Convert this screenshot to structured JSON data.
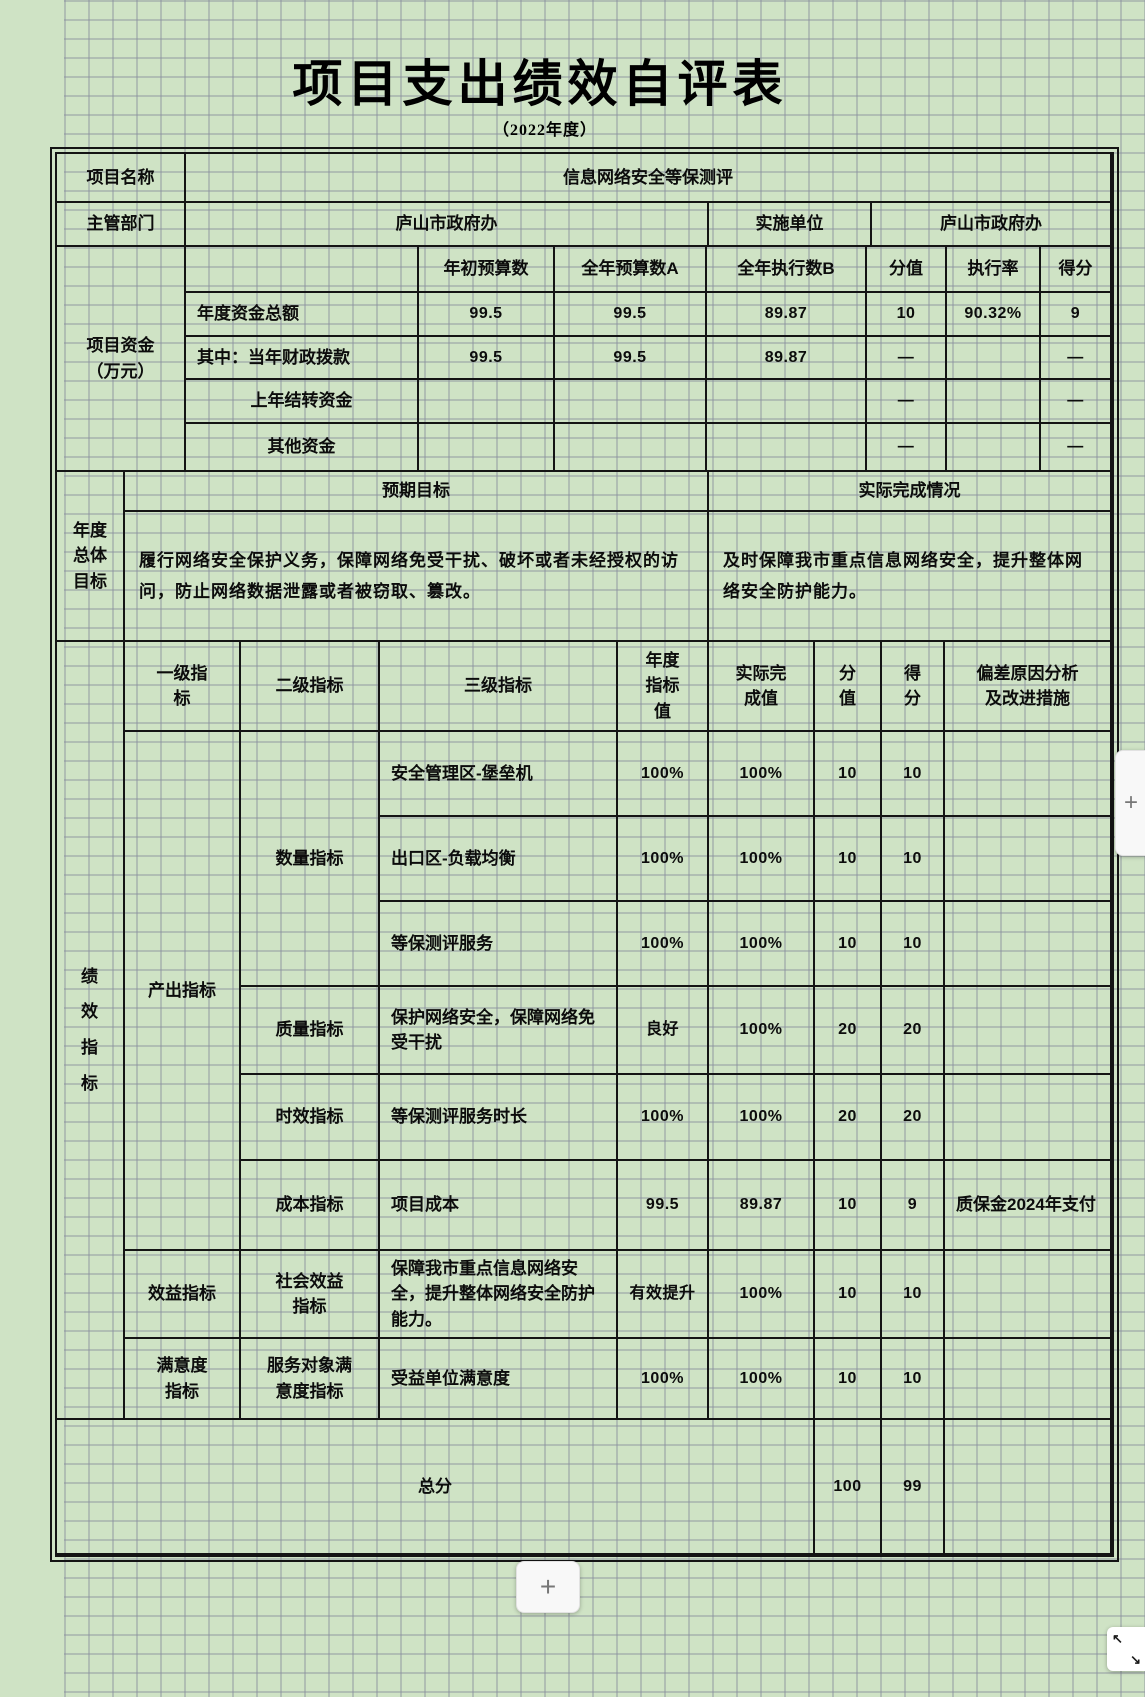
{
  "title": "项目支出绩效自评表",
  "subtitle": "（2022年度）",
  "info": {
    "project_name_label": "项目名称",
    "project_name": "信息网络安全等保测评",
    "dept_label": "主管部门",
    "dept": "庐山市政府办",
    "impl_label": "实施单位",
    "impl": "庐山市政府办"
  },
  "funding": {
    "row_label": "项目资金\n（万元）",
    "col_headers": [
      "年初预算数",
      "全年预算数A",
      "全年执行数B",
      "分值",
      "执行率",
      "得分"
    ],
    "rows": [
      {
        "label": "年度资金总额",
        "initial": "99.5",
        "annual": "99.5",
        "executed": "89.87",
        "points": "10",
        "rate": "90.32%",
        "score": "9"
      },
      {
        "label": "其中：当年财政拨款",
        "initial": "99.5",
        "annual": "99.5",
        "executed": "89.87",
        "points": "—",
        "rate": "",
        "score": "—"
      },
      {
        "label": "上年结转资金",
        "initial": "",
        "annual": "",
        "executed": "",
        "points": "—",
        "rate": "",
        "score": "—"
      },
      {
        "label": "其他资金",
        "initial": "",
        "annual": "",
        "executed": "",
        "points": "—",
        "rate": "",
        "score": "—"
      }
    ]
  },
  "goal": {
    "row_label": "年度\n总体\n目标",
    "expected_header": "预期目标",
    "actual_header": "实际完成情况",
    "expected_text": "履行网络安全保护义务，保障网络免受干扰、破坏或者未经授权的访问，防止网络数据泄露或者被窃取、篡改。",
    "actual_text": "及时保障我市重点信息网络安全，提升整体网络安全防护能力。"
  },
  "indicators": {
    "row_label": "绩\n效\n指\n标",
    "headers": [
      "一级指标",
      "二级指标",
      "三级指标",
      "年度指标值",
      "实际完成值",
      "分值",
      "得分",
      "偏差原因分析及改进措施"
    ],
    "level1": [
      "产出指标",
      "效益指标",
      "满意度指标"
    ],
    "level2": [
      "数量指标",
      "质量指标",
      "时效指标",
      "成本指标",
      "社会效益指标",
      "服务对象满意度指标"
    ],
    "rows": [
      {
        "level3": "安全管理区-堡垒机",
        "target": "100%",
        "actual": "100%",
        "points": "10",
        "score": "10",
        "deviation": ""
      },
      {
        "level3": "出口区-负载均衡",
        "target": "100%",
        "actual": "100%",
        "points": "10",
        "score": "10",
        "deviation": ""
      },
      {
        "level3": "等保测评服务",
        "target": "100%",
        "actual": "100%",
        "points": "10",
        "score": "10",
        "deviation": ""
      },
      {
        "level3": "保护网络安全，保障网络免受干扰",
        "target": "良好",
        "actual": "100%",
        "points": "20",
        "score": "20",
        "deviation": ""
      },
      {
        "level3": "等保测评服务时长",
        "target": "100%",
        "actual": "100%",
        "points": "20",
        "score": "20",
        "deviation": ""
      },
      {
        "level3": "项目成本",
        "target": "99.5",
        "actual": "89.87",
        "points": "10",
        "score": "9",
        "deviation": "质保金2024年支付"
      },
      {
        "level3": "保障我市重点信息网络安全，提升整体网络安全防护能力。",
        "target": "有效提升",
        "actual": "100%",
        "points": "10",
        "score": "10",
        "deviation": ""
      },
      {
        "level3": "受益单位满意度",
        "target": "100%",
        "actual": "100%",
        "points": "10",
        "score": "10",
        "deviation": ""
      }
    ],
    "total": {
      "label": "总分",
      "points": "100",
      "score": "99"
    }
  },
  "controls": {
    "bottom_add_label": "+",
    "side_add_label": "+",
    "resize_up_left": "↖",
    "resize_down_right": "↘"
  },
  "colors": {
    "sheet_bg": "#cfe3c5",
    "gridline": "#8a909e",
    "table_border": "#141414",
    "panel_bg": "#f8f8f8",
    "plus_icon": "#777777"
  }
}
